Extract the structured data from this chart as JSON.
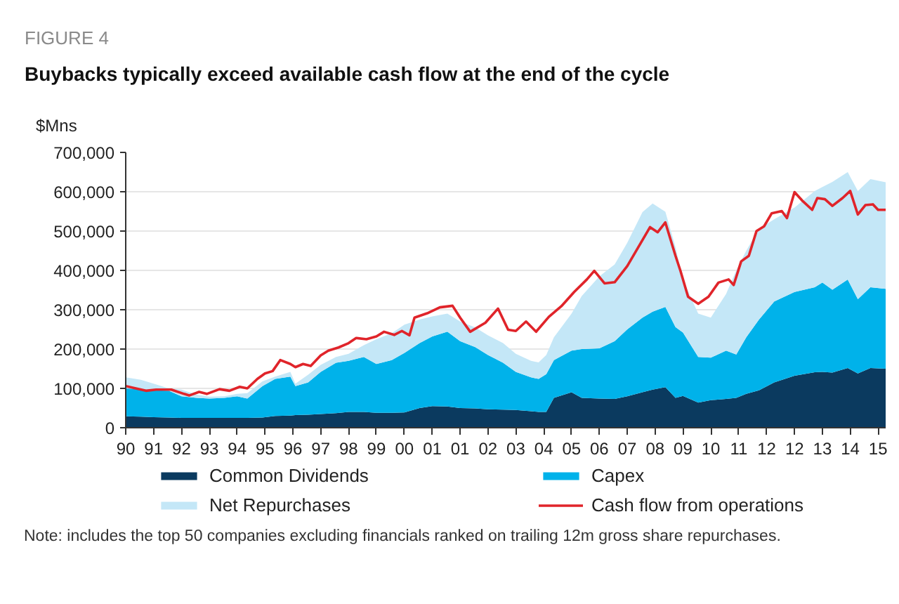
{
  "chart_data": {
    "type": "area",
    "stacked": true,
    "title": "FIGURE 4",
    "subtitle": "Buybacks typically exceed available cash flow at the end of the cycle",
    "ylabel": "$Mns",
    "annotations": [
      "Note: includes the top 50 companies excluding financials ranked on trailing 12m gross share repurchases."
    ],
    "x": [
      "1990-12",
      "1991-06",
      "1991-11",
      "1992-05",
      "1992-10",
      "1993-04",
      "1993-09",
      "1994-03",
      "1994-08",
      "1994-12",
      "1995-06",
      "1995-11",
      "1996-05",
      "1996-07",
      "1996-12",
      "1997-05",
      "1997-11",
      "1998-04",
      "1998-10",
      "1999-03",
      "1999-09",
      "2000-02",
      "2000-08",
      "2001-01",
      "2001-07",
      "2001-12",
      "2002-06",
      "2002-11",
      "2003-05",
      "2003-10",
      "2004-04",
      "2004-07",
      "2004-10",
      "2005-01",
      "2005-08",
      "2005-12",
      "2006-07",
      "2007-01",
      "2007-06",
      "2007-12",
      "2008-04",
      "2008-09",
      "2009-01",
      "2009-04",
      "2009-10",
      "2010-03",
      "2010-09",
      "2011-01",
      "2011-05",
      "2011-10",
      "2012-04",
      "2012-12",
      "2013-08",
      "2013-11",
      "2014-03",
      "2014-09",
      "2015-01",
      "2015-06",
      "2015-12"
    ],
    "xlim": [
      "1990-12",
      "2015-12"
    ],
    "xticks": [
      {
        "value": "1990-12",
        "label": "90"
      },
      {
        "value": "1991-11",
        "label": "91"
      },
      {
        "value": "1992-10",
        "label": "92"
      },
      {
        "value": "1993-09",
        "label": "93"
      },
      {
        "value": "1994-08",
        "label": "94"
      },
      {
        "value": "1995-07",
        "label": "95"
      },
      {
        "value": "1996-06",
        "label": "96"
      },
      {
        "value": "1997-05",
        "label": "97"
      },
      {
        "value": "1998-04",
        "label": "98"
      },
      {
        "value": "1999-03",
        "label": "99"
      },
      {
        "value": "2000-02",
        "label": "00"
      },
      {
        "value": "2001-01",
        "label": "01"
      },
      {
        "value": "2001-12",
        "label": "01"
      },
      {
        "value": "2002-11",
        "label": "02"
      },
      {
        "value": "2003-10",
        "label": "03"
      },
      {
        "value": "2004-09",
        "label": "04"
      },
      {
        "value": "2005-08",
        "label": "05"
      },
      {
        "value": "2006-07",
        "label": "06"
      },
      {
        "value": "2007-06",
        "label": "07"
      },
      {
        "value": "2008-05",
        "label": "08"
      },
      {
        "value": "2009-04",
        "label": "09"
      },
      {
        "value": "2010-03",
        "label": "10"
      },
      {
        "value": "2011-02",
        "label": "11"
      },
      {
        "value": "2012-01",
        "label": "12"
      },
      {
        "value": "2012-12",
        "label": "12"
      },
      {
        "value": "2013-11",
        "label": "13"
      },
      {
        "value": "2014-10",
        "label": "14"
      },
      {
        "value": "2015-09",
        "label": "15"
      }
    ],
    "ylim": [
      0,
      700000
    ],
    "yticks": [
      0,
      {
        "value": 100000,
        "label": "100,000"
      },
      {
        "value": 200000,
        "label": "200,000"
      },
      {
        "value": 300000,
        "label": "300,000"
      },
      {
        "value": 400000,
        "label": "400,000"
      },
      {
        "value": 500000,
        "label": "500,000"
      },
      {
        "value": 600000,
        "label": "600,000"
      },
      {
        "value": 700000,
        "label": "700,000"
      }
    ],
    "grid": "y",
    "legend": "bottom",
    "series": [
      {
        "name": "Common Dividends",
        "color": "#0b3a5f",
        "values": [
          29000,
          28000,
          27000,
          26000,
          25000,
          25000,
          25000,
          25000,
          25000,
          25000,
          26000,
          30000,
          31000,
          32000,
          33000,
          35000,
          37000,
          40000,
          40000,
          38000,
          38000,
          39000,
          50000,
          55000,
          54000,
          50000,
          49000,
          47000,
          46000,
          45000,
          42000,
          40000,
          40000,
          76000,
          90000,
          76000,
          74000,
          73000,
          80000,
          90000,
          97000,
          103000,
          76000,
          81000,
          64000,
          70000,
          73000,
          76000,
          86000,
          95000,
          115000,
          132000,
          141000,
          142000,
          140000,
          152000,
          138000,
          152000,
          150000
        ]
      },
      {
        "name": "Capex",
        "color": "#00b2ea",
        "values": [
          71000,
          70000,
          68000,
          68000,
          55000,
          51000,
          49000,
          51000,
          55000,
          49000,
          80000,
          94000,
          99000,
          74000,
          82000,
          107000,
          128000,
          130000,
          140000,
          124000,
          134000,
          151000,
          165000,
          177000,
          190000,
          170000,
          156000,
          138000,
          119000,
          97000,
          86000,
          84000,
          96000,
          96000,
          106000,
          124000,
          128000,
          147000,
          170000,
          190000,
          198000,
          204000,
          180000,
          161000,
          116000,
          108000,
          123000,
          110000,
          144000,
          180000,
          206000,
          213000,
          216000,
          227000,
          211000,
          225000,
          189000,
          205000,
          203000
        ]
      },
      {
        "name": "Net Repurchases",
        "color": "#c4e7f7",
        "values": [
          28000,
          24000,
          17000,
          6000,
          17000,
          8000,
          5000,
          4000,
          6000,
          14000,
          12000,
          6000,
          12000,
          6000,
          20000,
          18000,
          15000,
          18000,
          30000,
          63000,
          68000,
          72000,
          60000,
          51000,
          46000,
          50000,
          50000,
          50000,
          50000,
          46000,
          42000,
          42000,
          49000,
          58000,
          94000,
          135000,
          183000,
          195000,
          220000,
          268000,
          275000,
          242000,
          203000,
          133000,
          110000,
          102000,
          144000,
          214000,
          220000,
          231000,
          209000,
          215000,
          245000,
          243000,
          274000,
          273000,
          275000,
          275000,
          271000
        ]
      },
      {
        "name": "Cash flow from operations",
        "type": "line",
        "color": "#e0242a",
        "x": [
          "1990-12",
          "1991-04",
          "1991-08",
          "1991-12",
          "1992-06",
          "1992-11",
          "1993-01",
          "1993-05",
          "1993-08",
          "1994-01",
          "1994-05",
          "1994-09",
          "1994-12",
          "1995-04",
          "1995-07",
          "1995-10",
          "1996-01",
          "1996-05",
          "1996-07",
          "1996-10",
          "1997-01",
          "1997-05",
          "1997-08",
          "1997-12",
          "1998-04",
          "1998-07",
          "1998-11",
          "1999-03",
          "1999-06",
          "1999-10",
          "2000-01",
          "2000-04",
          "2000-06",
          "2000-11",
          "2001-04",
          "2001-09",
          "2001-12",
          "2002-04",
          "2002-10",
          "2003-03",
          "2003-07",
          "2003-10",
          "2004-02",
          "2004-06",
          "2004-11",
          "2005-04",
          "2005-09",
          "2006-02",
          "2006-05",
          "2006-09",
          "2007-01",
          "2007-06",
          "2008-03",
          "2008-06",
          "2008-09",
          "2009-01",
          "2009-03",
          "2009-06",
          "2009-10",
          "2010-02",
          "2010-06",
          "2010-10",
          "2010-12",
          "2011-03",
          "2011-06",
          "2011-09",
          "2011-12",
          "2012-03",
          "2012-07",
          "2012-09",
          "2012-12",
          "2013-03",
          "2013-07",
          "2013-09",
          "2013-12",
          "2014-03",
          "2014-07",
          "2014-10",
          "2015-01",
          "2015-04",
          "2015-07",
          "2015-09",
          "2015-12"
        ],
        "values": [
          106000,
          100000,
          94000,
          97000,
          97000,
          86000,
          82000,
          91000,
          86000,
          98000,
          94000,
          104000,
          100000,
          124000,
          138000,
          144000,
          172000,
          162000,
          154000,
          162000,
          157000,
          184000,
          196000,
          204000,
          215000,
          228000,
          225000,
          232000,
          244000,
          236000,
          246000,
          235000,
          280000,
          291000,
          306000,
          310000,
          280000,
          244000,
          267000,
          303000,
          249000,
          246000,
          270000,
          244000,
          282000,
          309000,
          345000,
          377000,
          399000,
          367000,
          370000,
          411000,
          510000,
          497000,
          522000,
          437000,
          399000,
          333000,
          315000,
          333000,
          369000,
          377000,
          363000,
          423000,
          437000,
          500000,
          512000,
          545000,
          551000,
          533000,
          599000,
          578000,
          554000,
          584000,
          581000,
          564000,
          584000,
          602000,
          542000,
          566000,
          568000,
          554000,
          554000
        ]
      }
    ]
  }
}
